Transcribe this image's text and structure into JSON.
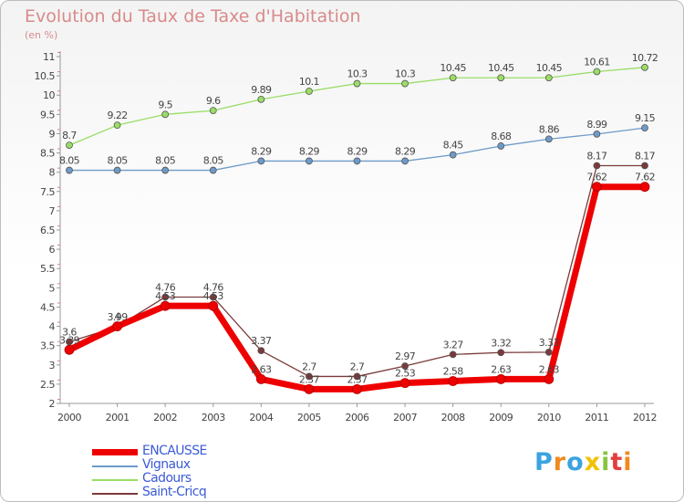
{
  "title": "Evolution du Taux de Taxe d'Habitation",
  "unit": "(en %)",
  "logo_text": "Proxiti",
  "chart_data": {
    "type": "line",
    "title": "Evolution du Taux de Taxe d'Habitation",
    "ylabel": "(en %)",
    "ylim": [
      2,
      11
    ],
    "grid": false,
    "legend_position": "bottom-left",
    "x": [
      "2000",
      "2001",
      "2002",
      "2003",
      "2004",
      "2005",
      "2006",
      "2007",
      "2008",
      "2009",
      "2010",
      "2011",
      "2012"
    ],
    "y_ticks": [
      "2",
      "2.5",
      "3",
      "3.5",
      "4",
      "4.5",
      "5",
      "5.5",
      "6",
      "6.5",
      "7",
      "7.5",
      "8",
      "8.5",
      "9",
      "9.5",
      "10",
      "10.5",
      "11"
    ],
    "series": [
      {
        "name": "ENCAUSSE",
        "color": "#ee0000",
        "values": [
          3.39,
          4,
          4.53,
          4.53,
          2.63,
          2.37,
          2.37,
          2.53,
          2.58,
          2.63,
          2.63,
          7.62,
          7.62
        ],
        "labels": [
          "3.39",
          "4",
          "4.53",
          "4.53",
          "2.63",
          "2.37",
          "2.37",
          "2.53",
          "2.58",
          "2.63",
          "2.63",
          "7.62",
          "7.62"
        ]
      },
      {
        "name": "Vignaux",
        "color": "#6d9bc8",
        "values": [
          8.05,
          8.05,
          8.05,
          8.05,
          8.29,
          8.29,
          8.29,
          8.29,
          8.45,
          8.68,
          8.86,
          8.99,
          9.15
        ],
        "labels": [
          "8.05",
          "8.05",
          "8.05",
          "8.05",
          "8.29",
          "8.29",
          "8.29",
          "8.29",
          "8.45",
          "8.68",
          "8.86",
          "8.99",
          "9.15"
        ]
      },
      {
        "name": "Cadours",
        "color": "#99dd66",
        "values": [
          8.7,
          9.22,
          9.5,
          9.6,
          9.89,
          10.1,
          10.3,
          10.3,
          10.45,
          10.45,
          10.45,
          10.61,
          10.72
        ],
        "labels": [
          "8.7",
          "9.22",
          "9.5",
          "9.6",
          "9.89",
          "10.1",
          "10.3",
          "10.3",
          "10.45",
          "10.45",
          "10.45",
          "10.61",
          "10.72"
        ]
      },
      {
        "name": "Saint-Cricq",
        "color": "#7a3a3a",
        "values": [
          3.6,
          3.99,
          4.76,
          4.76,
          3.37,
          2.7,
          2.7,
          2.97,
          3.27,
          3.32,
          3.33,
          8.17,
          8.17
        ],
        "labels": [
          "3.6",
          "3.99",
          "4.76",
          "4.76",
          "3.37",
          "2.7",
          "2.7",
          "2.97",
          "3.27",
          "3.32",
          "3.33",
          "8.17",
          "8.17"
        ]
      }
    ]
  }
}
